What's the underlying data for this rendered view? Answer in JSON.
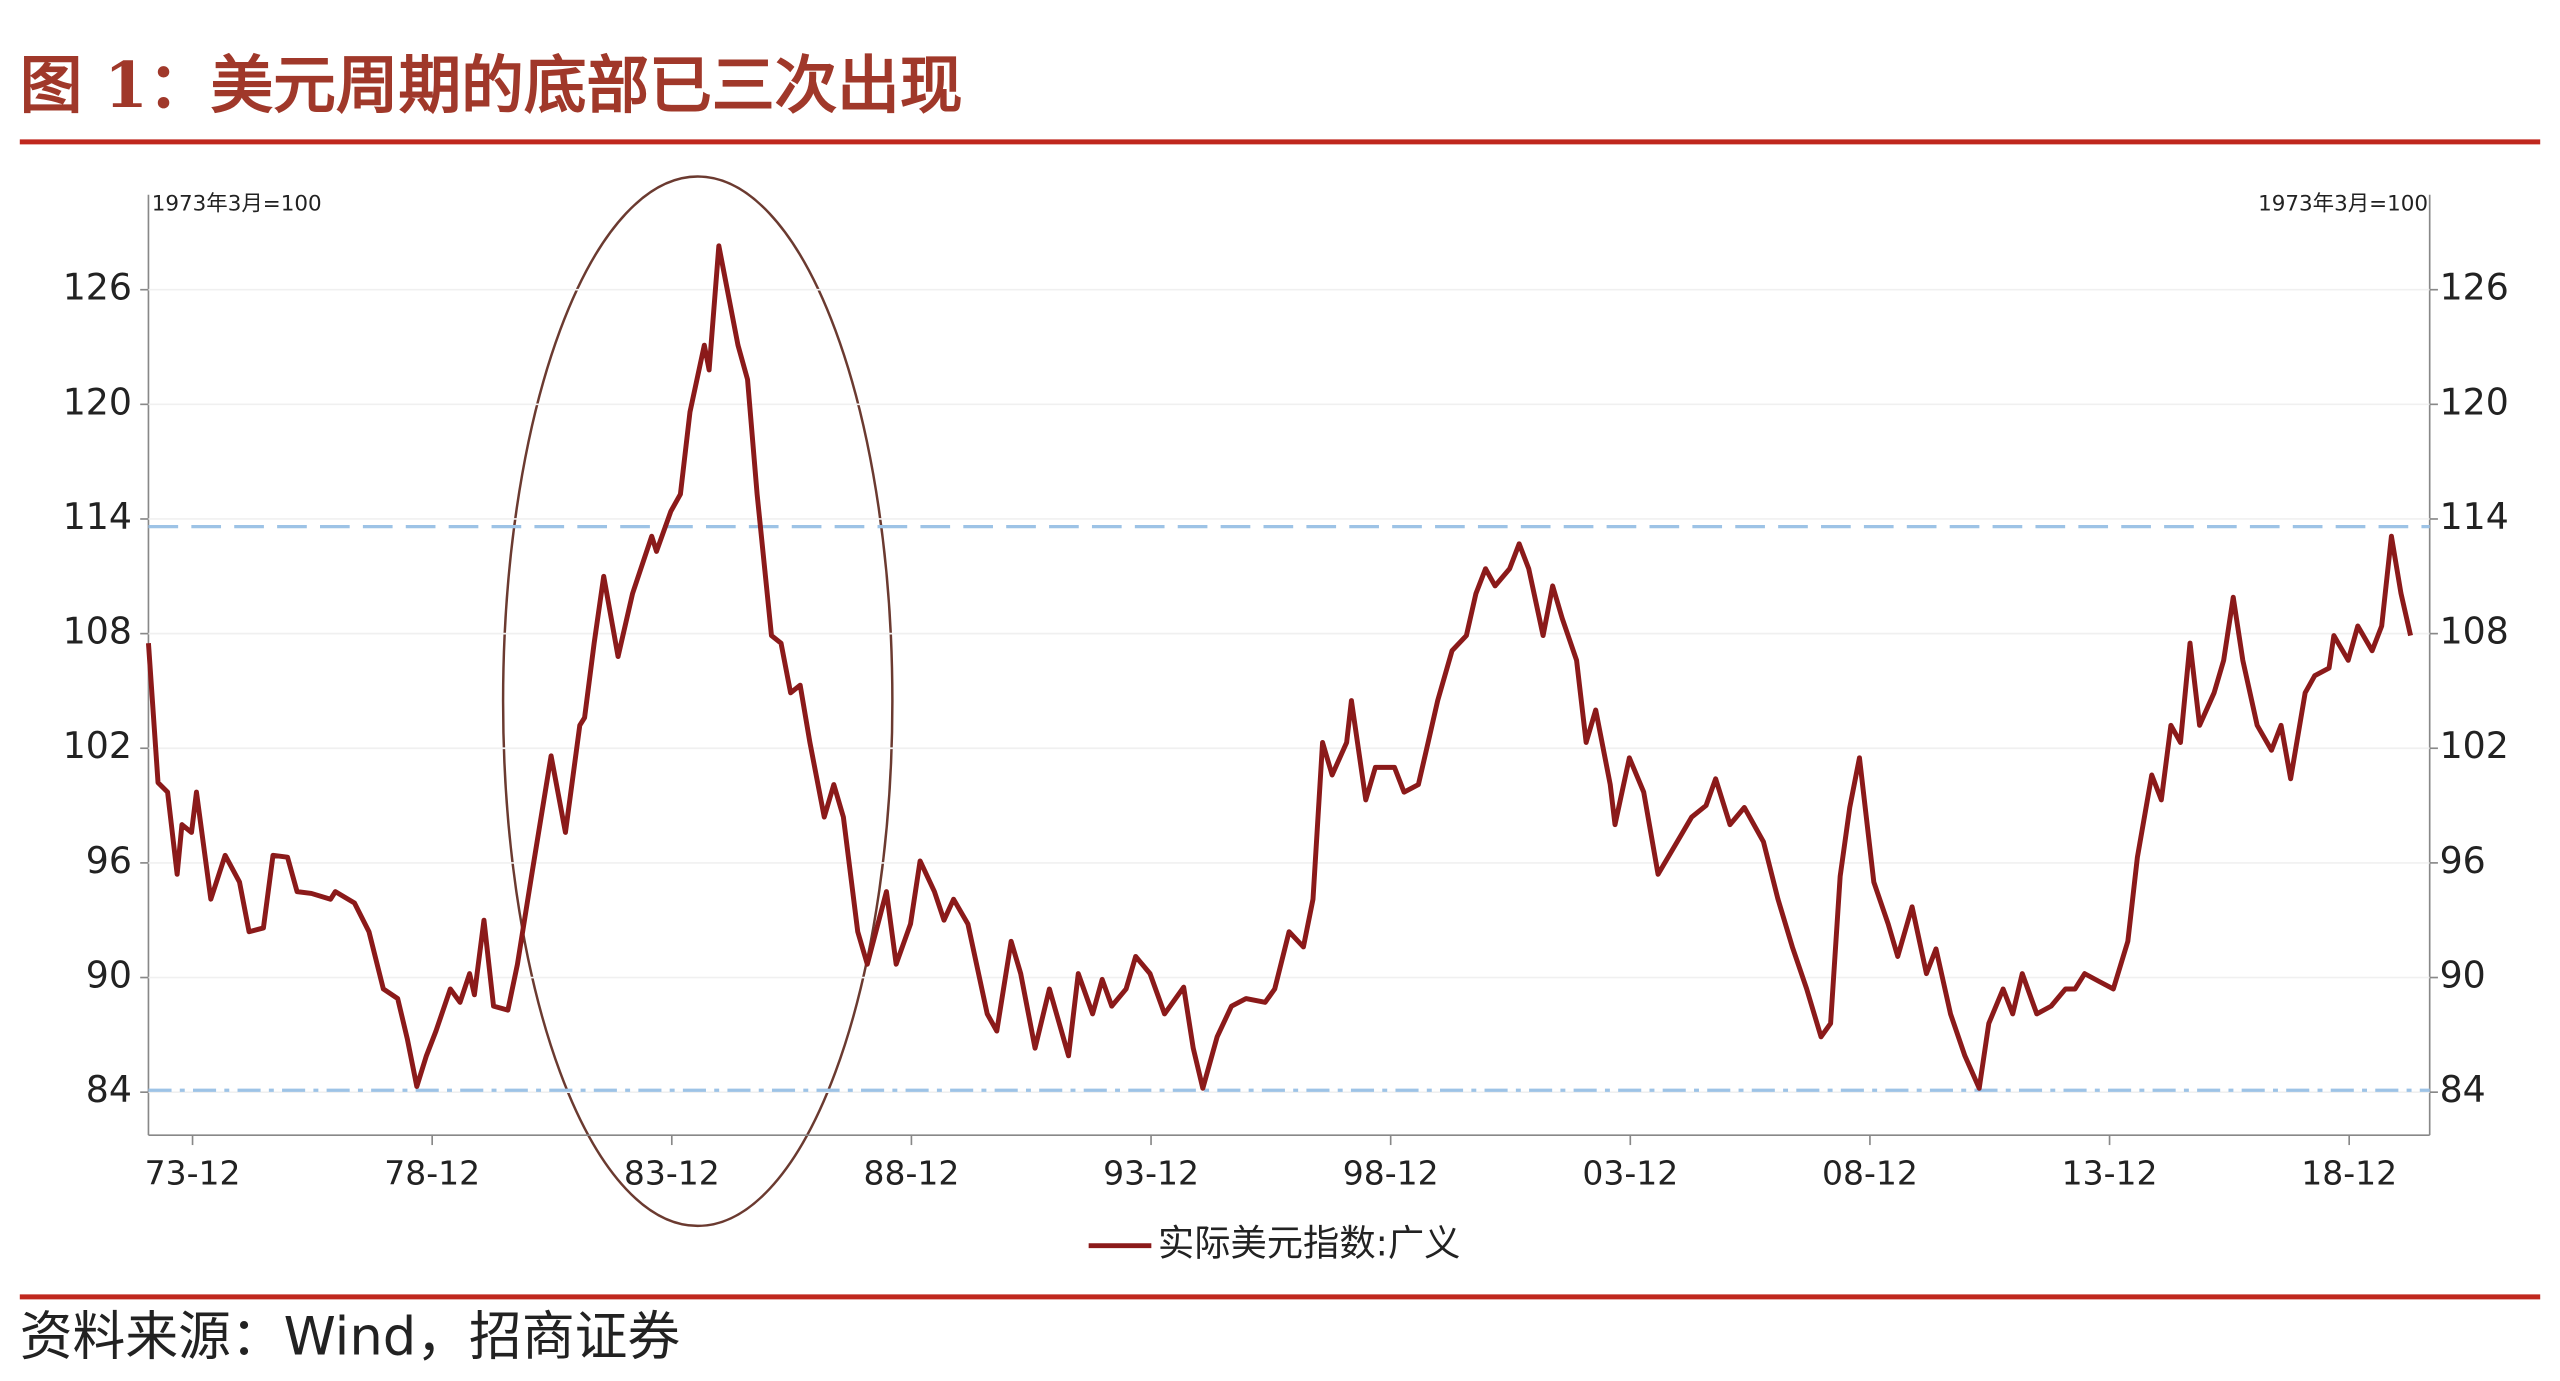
{
  "title": "图 1：美元周期的底部已三次出现",
  "source": "资料来源：Wind，招商证券",
  "chart_data": {
    "type": "line",
    "annotations": [
      "1973年3月=100",
      "1973年3月=100"
    ],
    "x": [
      1973.0,
      1973.2,
      1973.4,
      1973.6,
      1973.7,
      1973.9,
      1974.0,
      1974.3,
      1974.6,
      1974.9,
      1975.1,
      1975.4,
      1975.6,
      1975.9,
      1976.1,
      1976.4,
      1976.8,
      1976.9,
      1977.3,
      1977.6,
      1977.9,
      1978.2,
      1978.4,
      1978.6,
      1978.8,
      1979.0,
      1979.3,
      1979.5,
      1979.7,
      1979.8,
      1980.0,
      1980.2,
      1980.5,
      1980.7,
      1981.0,
      1981.4,
      1981.7,
      1982.0,
      1982.1,
      1982.3,
      1982.5,
      1982.8,
      1983.1,
      1983.5,
      1983.6,
      1983.9,
      1984.1,
      1984.3,
      1984.6,
      1984.7,
      1984.9,
      1985.1,
      1985.3,
      1985.5,
      1985.7,
      1986.0,
      1986.2,
      1986.4,
      1986.6,
      1986.8,
      1987.1,
      1987.3,
      1987.5,
      1987.8,
      1988.0,
      1988.4,
      1988.6,
      1988.9,
      1989.1,
      1989.4,
      1989.6,
      1989.8,
      1990.1,
      1990.5,
      1990.7,
      1991.0,
      1991.2,
      1991.5,
      1991.8,
      1992.2,
      1992.4,
      1992.7,
      1992.9,
      1993.1,
      1993.4,
      1993.6,
      1993.9,
      1994.2,
      1994.6,
      1994.8,
      1995.0,
      1995.3,
      1995.6,
      1995.9,
      1996.3,
      1996.5,
      1996.8,
      1997.1,
      1997.3,
      1997.5,
      1997.7,
      1998.0,
      1998.1,
      1998.4,
      1998.6,
      1999.0,
      1999.2,
      1999.5,
      1999.7,
      1999.9,
      2000.2,
      2000.5,
      2000.7,
      2000.9,
      2001.1,
      2001.4,
      2001.6,
      2001.8,
      2002.1,
      2002.3,
      2002.5,
      2002.8,
      2003.0,
      2003.2,
      2003.5,
      2003.6,
      2003.9,
      2004.2,
      2004.5,
      2004.9,
      2005.2,
      2005.5,
      2005.7,
      2006.0,
      2006.3,
      2006.7,
      2007.0,
      2007.3,
      2007.6,
      2007.9,
      2008.1,
      2008.3,
      2008.5,
      2008.7,
      2009.0,
      2009.3,
      2009.5,
      2009.8,
      2010.1,
      2010.3,
      2010.6,
      2010.9,
      2011.2,
      2011.4,
      2011.7,
      2011.9,
      2012.1,
      2012.4,
      2012.7,
      2013.0,
      2013.2,
      2013.4,
      2013.7,
      2014.0,
      2014.3,
      2014.5,
      2014.8,
      2015.0,
      2015.2,
      2015.4,
      2015.6,
      2015.8,
      2016.1,
      2016.3,
      2016.5,
      2016.7,
      2017.0,
      2017.3,
      2017.5,
      2017.7,
      2018.0,
      2018.2,
      2018.5,
      2018.6,
      2018.9,
      2019.1,
      2019.4,
      2019.6,
      2019.8,
      2020.0,
      2020.2
    ],
    "series": [
      {
        "name": "实际美元指数:广义",
        "color": "#8b1a1a",
        "values": [
          107.5,
          100.2,
          99.7,
          95.4,
          98,
          97.6,
          99.7,
          94.1,
          96.4,
          95,
          92.4,
          92.6,
          96.4,
          96.3,
          94.5,
          94.4,
          94.1,
          94.5,
          93.9,
          92.4,
          89.4,
          88.9,
          86.8,
          84.3,
          85.9,
          87.2,
          89.4,
          88.7,
          90.2,
          89.1,
          93,
          88.5,
          88.3,
          90.7,
          95.4,
          101.6,
          97.6,
          103.2,
          103.6,
          107.5,
          111,
          106.8,
          110.1,
          113.1,
          112.3,
          114.4,
          115.3,
          119.6,
          123.1,
          121.8,
          128.3,
          125.7,
          123.1,
          121.3,
          115.3,
          107.9,
          107.5,
          104.9,
          105.3,
          102.3,
          98.4,
          100.1,
          98.4,
          92.4,
          90.7,
          94.5,
          90.7,
          92.8,
          96.1,
          94.5,
          93,
          94.1,
          92.8,
          88.1,
          87.2,
          91.9,
          90.2,
          86.3,
          89.4,
          85.9,
          90.2,
          88.1,
          89.9,
          88.5,
          89.4,
          91.1,
          90.2,
          88.1,
          89.5,
          86.3,
          84.2,
          86.9,
          88.5,
          88.9,
          88.7,
          89.4,
          92.4,
          91.6,
          94.1,
          102.3,
          100.6,
          102.3,
          104.5,
          99.3,
          101,
          101,
          99.7,
          100.1,
          102.3,
          104.5,
          107.1,
          107.9,
          110.1,
          111.4,
          110.5,
          111.4,
          112.7,
          111.4,
          107.9,
          110.5,
          108.8,
          106.6,
          102.3,
          104,
          100.1,
          98,
          101.5,
          99.7,
          95.4,
          97.1,
          98.4,
          99,
          100.4,
          98,
          98.9,
          97.1,
          94.1,
          91.6,
          89.4,
          86.9,
          87.6,
          95.3,
          98.9,
          101.5,
          95,
          92.8,
          91.1,
          93.7,
          90.2,
          91.5,
          88.1,
          85.9,
          84.2,
          87.6,
          89.4,
          88.1,
          90.2,
          88.1,
          88.5,
          89.4,
          89.4,
          90.2,
          89.8,
          89.4,
          91.9,
          96.3,
          100.6,
          99.3,
          103.2,
          102.3,
          107.5,
          103.2,
          104.9,
          106.6,
          109.9,
          106.6,
          103.2,
          101.9,
          103.2,
          100.4,
          104.9,
          105.8,
          106.2,
          107.9,
          106.6,
          108.4,
          107.1,
          108.4,
          113.1,
          110.1,
          107.9
        ]
      }
    ],
    "xlim": [
      1973.0,
      2020.6
    ],
    "xticks": [
      {
        "value": 1973.92,
        "label": "73-12"
      },
      {
        "value": 1978.92,
        "label": "78-12"
      },
      {
        "value": 1983.92,
        "label": "83-12"
      },
      {
        "value": 1988.92,
        "label": "88-12"
      },
      {
        "value": 1993.92,
        "label": "93-12"
      },
      {
        "value": 1998.92,
        "label": "98-12"
      },
      {
        "value": 2003.92,
        "label": "03-12"
      },
      {
        "value": 2008.92,
        "label": "08-12"
      },
      {
        "value": 2013.92,
        "label": "13-12"
      },
      {
        "value": 2018.92,
        "label": "18-12"
      }
    ],
    "ylim": [
      81.75,
      130.8
    ],
    "yticks": [
      84,
      90,
      96,
      102,
      108,
      114,
      120,
      126
    ],
    "y2lim": [
      81.75,
      130.8
    ],
    "y2ticks": [
      84,
      90,
      96,
      102,
      108,
      114,
      120,
      126
    ],
    "reference_lines": [
      {
        "value": 113.6,
        "color": "#9dc3e6",
        "dash": "18 8"
      },
      {
        "value": 84.1,
        "color": "#9dc3e6",
        "dash": "14 5 3 5"
      }
    ],
    "legend": "bottom"
  }
}
